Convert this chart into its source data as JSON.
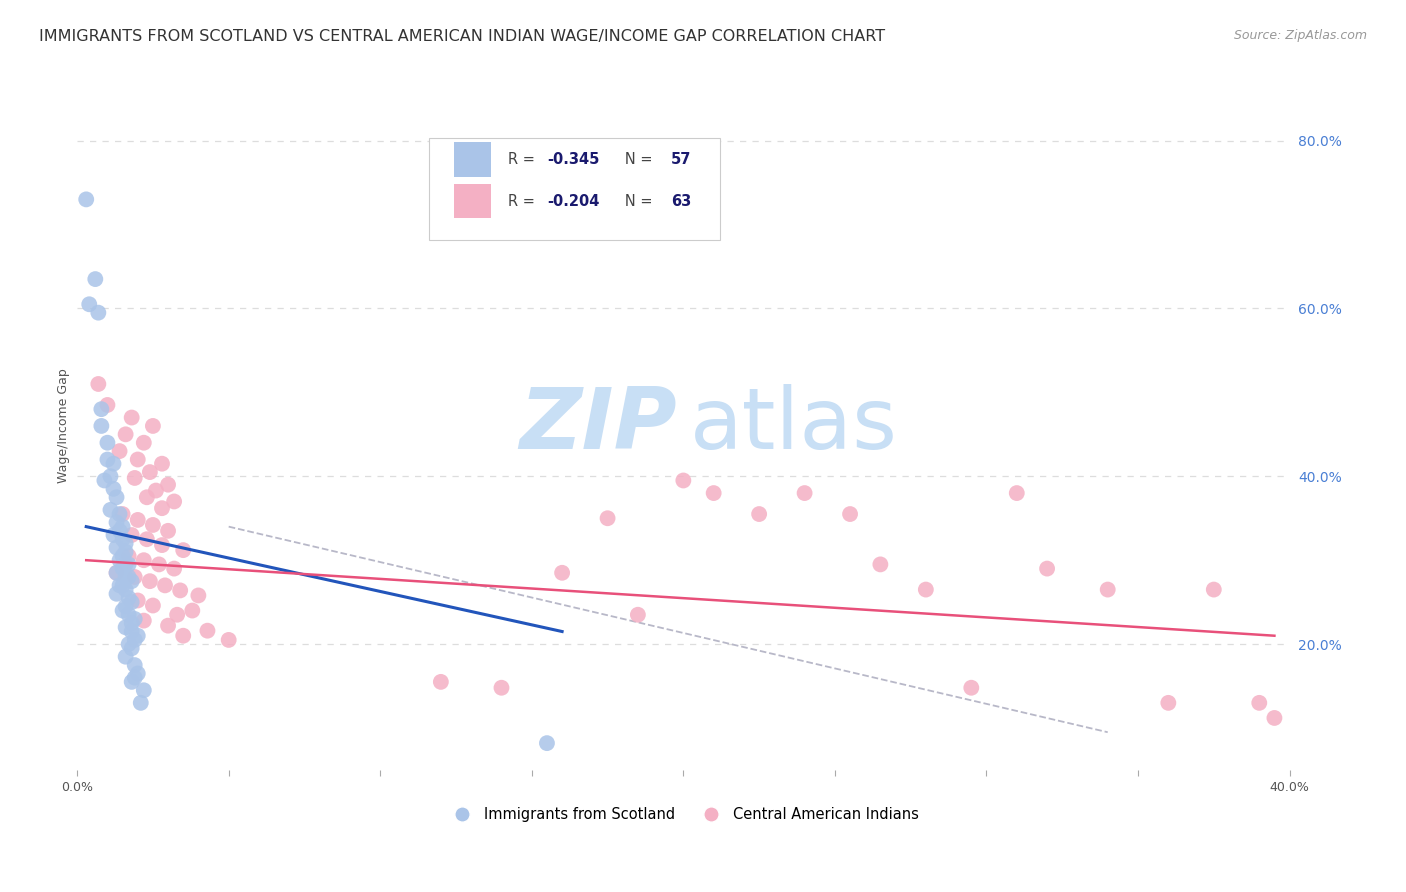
{
  "title": "IMMIGRANTS FROM SCOTLAND VS CENTRAL AMERICAN INDIAN WAGE/INCOME GAP CORRELATION CHART",
  "source": "Source: ZipAtlas.com",
  "ylabel": "Wage/Income Gap",
  "x_min": 0.0,
  "x_max": 0.4,
  "y_min": 0.05,
  "y_max": 0.87,
  "right_yticks": [
    0.2,
    0.4,
    0.6,
    0.8
  ],
  "right_yticklabels": [
    "20.0%",
    "40.0%",
    "60.0%",
    "80.0%"
  ],
  "bottom_xticks": [
    0.0,
    0.05,
    0.1,
    0.15,
    0.2,
    0.25,
    0.3,
    0.35,
    0.4
  ],
  "bottom_xticklabels": [
    "0.0%",
    "",
    "",
    "",
    "",
    "",
    "",
    "",
    "40.0%"
  ],
  "legend_label1": "Immigrants from Scotland",
  "legend_label2": "Central American Indians",
  "scatter_blue": [
    [
      0.003,
      0.73
    ],
    [
      0.006,
      0.635
    ],
    [
      0.004,
      0.605
    ],
    [
      0.007,
      0.595
    ],
    [
      0.008,
      0.48
    ],
    [
      0.008,
      0.46
    ],
    [
      0.01,
      0.44
    ],
    [
      0.01,
      0.42
    ],
    [
      0.012,
      0.415
    ],
    [
      0.011,
      0.4
    ],
    [
      0.009,
      0.395
    ],
    [
      0.012,
      0.385
    ],
    [
      0.013,
      0.375
    ],
    [
      0.011,
      0.36
    ],
    [
      0.014,
      0.355
    ],
    [
      0.013,
      0.345
    ],
    [
      0.015,
      0.34
    ],
    [
      0.014,
      0.335
    ],
    [
      0.012,
      0.33
    ],
    [
      0.015,
      0.325
    ],
    [
      0.016,
      0.32
    ],
    [
      0.013,
      0.315
    ],
    [
      0.016,
      0.31
    ],
    [
      0.015,
      0.305
    ],
    [
      0.014,
      0.3
    ],
    [
      0.016,
      0.295
    ],
    [
      0.017,
      0.295
    ],
    [
      0.015,
      0.29
    ],
    [
      0.013,
      0.285
    ],
    [
      0.016,
      0.28
    ],
    [
      0.017,
      0.28
    ],
    [
      0.018,
      0.275
    ],
    [
      0.015,
      0.27
    ],
    [
      0.014,
      0.27
    ],
    [
      0.016,
      0.265
    ],
    [
      0.013,
      0.26
    ],
    [
      0.017,
      0.255
    ],
    [
      0.018,
      0.25
    ],
    [
      0.016,
      0.245
    ],
    [
      0.015,
      0.24
    ],
    [
      0.017,
      0.235
    ],
    [
      0.019,
      0.23
    ],
    [
      0.018,
      0.225
    ],
    [
      0.016,
      0.22
    ],
    [
      0.018,
      0.215
    ],
    [
      0.02,
      0.21
    ],
    [
      0.019,
      0.205
    ],
    [
      0.017,
      0.2
    ],
    [
      0.018,
      0.195
    ],
    [
      0.016,
      0.185
    ],
    [
      0.019,
      0.175
    ],
    [
      0.02,
      0.165
    ],
    [
      0.019,
      0.16
    ],
    [
      0.018,
      0.155
    ],
    [
      0.022,
      0.145
    ],
    [
      0.021,
      0.13
    ],
    [
      0.155,
      0.082
    ]
  ],
  "scatter_pink": [
    [
      0.007,
      0.51
    ],
    [
      0.01,
      0.485
    ],
    [
      0.018,
      0.47
    ],
    [
      0.025,
      0.46
    ],
    [
      0.016,
      0.45
    ],
    [
      0.022,
      0.44
    ],
    [
      0.014,
      0.43
    ],
    [
      0.02,
      0.42
    ],
    [
      0.028,
      0.415
    ],
    [
      0.024,
      0.405
    ],
    [
      0.019,
      0.398
    ],
    [
      0.03,
      0.39
    ],
    [
      0.026,
      0.383
    ],
    [
      0.023,
      0.375
    ],
    [
      0.032,
      0.37
    ],
    [
      0.028,
      0.362
    ],
    [
      0.015,
      0.355
    ],
    [
      0.02,
      0.348
    ],
    [
      0.025,
      0.342
    ],
    [
      0.03,
      0.335
    ],
    [
      0.018,
      0.33
    ],
    [
      0.023,
      0.325
    ],
    [
      0.028,
      0.318
    ],
    [
      0.035,
      0.312
    ],
    [
      0.017,
      0.305
    ],
    [
      0.022,
      0.3
    ],
    [
      0.027,
      0.295
    ],
    [
      0.032,
      0.29
    ],
    [
      0.013,
      0.285
    ],
    [
      0.019,
      0.28
    ],
    [
      0.024,
      0.275
    ],
    [
      0.029,
      0.27
    ],
    [
      0.034,
      0.264
    ],
    [
      0.04,
      0.258
    ],
    [
      0.02,
      0.252
    ],
    [
      0.025,
      0.246
    ],
    [
      0.038,
      0.24
    ],
    [
      0.033,
      0.235
    ],
    [
      0.022,
      0.228
    ],
    [
      0.03,
      0.222
    ],
    [
      0.043,
      0.216
    ],
    [
      0.035,
      0.21
    ],
    [
      0.05,
      0.205
    ],
    [
      0.12,
      0.155
    ],
    [
      0.14,
      0.148
    ],
    [
      0.16,
      0.285
    ],
    [
      0.175,
      0.35
    ],
    [
      0.185,
      0.235
    ],
    [
      0.2,
      0.395
    ],
    [
      0.21,
      0.38
    ],
    [
      0.225,
      0.355
    ],
    [
      0.24,
      0.38
    ],
    [
      0.255,
      0.355
    ],
    [
      0.265,
      0.295
    ],
    [
      0.28,
      0.265
    ],
    [
      0.295,
      0.148
    ],
    [
      0.31,
      0.38
    ],
    [
      0.32,
      0.29
    ],
    [
      0.34,
      0.265
    ],
    [
      0.36,
      0.13
    ],
    [
      0.375,
      0.265
    ],
    [
      0.39,
      0.13
    ],
    [
      0.395,
      0.112
    ]
  ],
  "blue_line": [
    [
      0.003,
      0.34
    ],
    [
      0.16,
      0.215
    ]
  ],
  "pink_line": [
    [
      0.003,
      0.3
    ],
    [
      0.395,
      0.21
    ]
  ],
  "gray_dash_line": [
    [
      0.05,
      0.34
    ],
    [
      0.34,
      0.095
    ]
  ],
  "scatter_blue_color": "#aac4e8",
  "scatter_pink_color": "#f4b0c4",
  "trend_blue_color": "#2255bb",
  "trend_pink_color": "#e8507a",
  "trend_gray_color": "#b8b8c8",
  "watermark_zip": "ZIP",
  "watermark_atlas": "atlas",
  "watermark_color": "#c8dff5",
  "background_color": "#ffffff",
  "grid_color": "#dddddd",
  "title_fontsize": 11.5,
  "axis_label_fontsize": 9,
  "tick_fontsize": 9,
  "right_axis_color": "#4a7fd4",
  "legend_text_color": "#1a1a6e",
  "legend_r_color": "#555555"
}
